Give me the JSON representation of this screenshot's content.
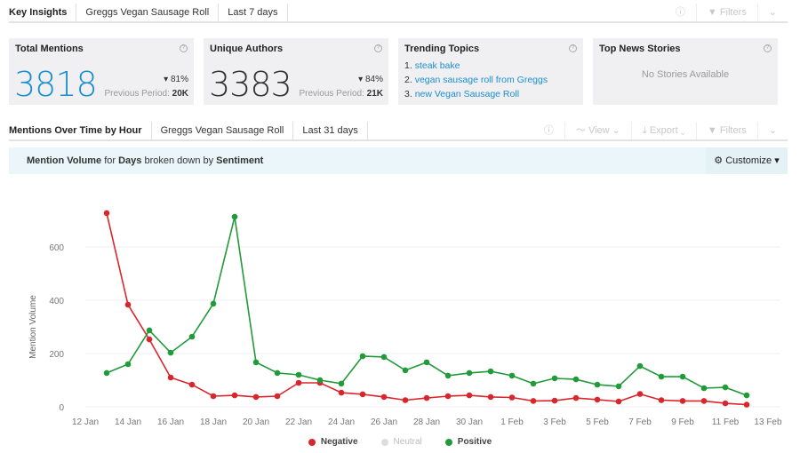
{
  "top_tabs": {
    "title": "Key Insights",
    "topic": "Greggs Vegan Sausage Roll",
    "range": "Last 7 days",
    "filters": "Filters"
  },
  "cards": {
    "total": {
      "title": "Total Mentions",
      "value": "3818",
      "delta": "81%",
      "prev_label": "Previous Period:",
      "prev_value": "20K"
    },
    "authors": {
      "title": "Unique Authors",
      "value": "3383",
      "delta": "84%",
      "prev_label": "Previous Period:",
      "prev_value": "21K"
    },
    "trending": {
      "title": "Trending Topics",
      "items": [
        {
          "n": "1.",
          "label": "steak bake"
        },
        {
          "n": "2.",
          "label": "vegan sausage roll from Greggs"
        },
        {
          "n": "3.",
          "label": "new Vegan Sausage Roll"
        }
      ]
    },
    "news": {
      "title": "Top News Stories",
      "empty": "No Stories Available"
    }
  },
  "chart_tabs": {
    "title": "Mentions Over Time by Hour",
    "topic": "Greggs Vegan Sausage Roll",
    "range": "Last 31 days",
    "view": "View",
    "export": "Export",
    "filters": "Filters"
  },
  "banner": {
    "p1": "Mention Volume",
    "p2": " for ",
    "p3": "Days",
    "p4": " broken down by ",
    "p5": "Sentiment",
    "customize": "Customize"
  },
  "colors": {
    "negative": "#d9262c",
    "positive": "#219a3a",
    "neutral": "#dddddd",
    "accent": "#1a8fd0"
  },
  "chart_data": {
    "type": "line",
    "ylabel": "Mention Volume",
    "ylim": [
      0,
      700
    ],
    "yticks": [
      0,
      200,
      400,
      600
    ],
    "xticks": [
      "12 Jan",
      "14 Jan",
      "16 Jan",
      "18 Jan",
      "20 Jan",
      "22 Jan",
      "24 Jan",
      "26 Jan",
      "28 Jan",
      "30 Jan",
      "1 Feb",
      "3 Feb",
      "5 Feb",
      "7 Feb",
      "9 Feb",
      "11 Feb",
      "13 Feb"
    ],
    "x_start": "13 Jan",
    "x_end": "12 Feb",
    "grid": true,
    "legend": "bottom",
    "series": [
      {
        "name": "Negative",
        "color": "#d9262c",
        "values": [
          727,
          383,
          253,
          110,
          83,
          40,
          43,
          37,
          40,
          90,
          90,
          53,
          47,
          37,
          25,
          33,
          40,
          43,
          37,
          35,
          22,
          23,
          33,
          27,
          20,
          48,
          25,
          22,
          22,
          13,
          8
        ]
      },
      {
        "name": "Neutral",
        "color": "#dddddd",
        "values": []
      },
      {
        "name": "Positive",
        "color": "#219a3a",
        "values": [
          127,
          160,
          287,
          203,
          263,
          387,
          713,
          167,
          127,
          120,
          100,
          87,
          190,
          187,
          137,
          167,
          117,
          127,
          133,
          117,
          87,
          107,
          103,
          83,
          77,
          153,
          113,
          113,
          70,
          73,
          43
        ]
      }
    ]
  }
}
